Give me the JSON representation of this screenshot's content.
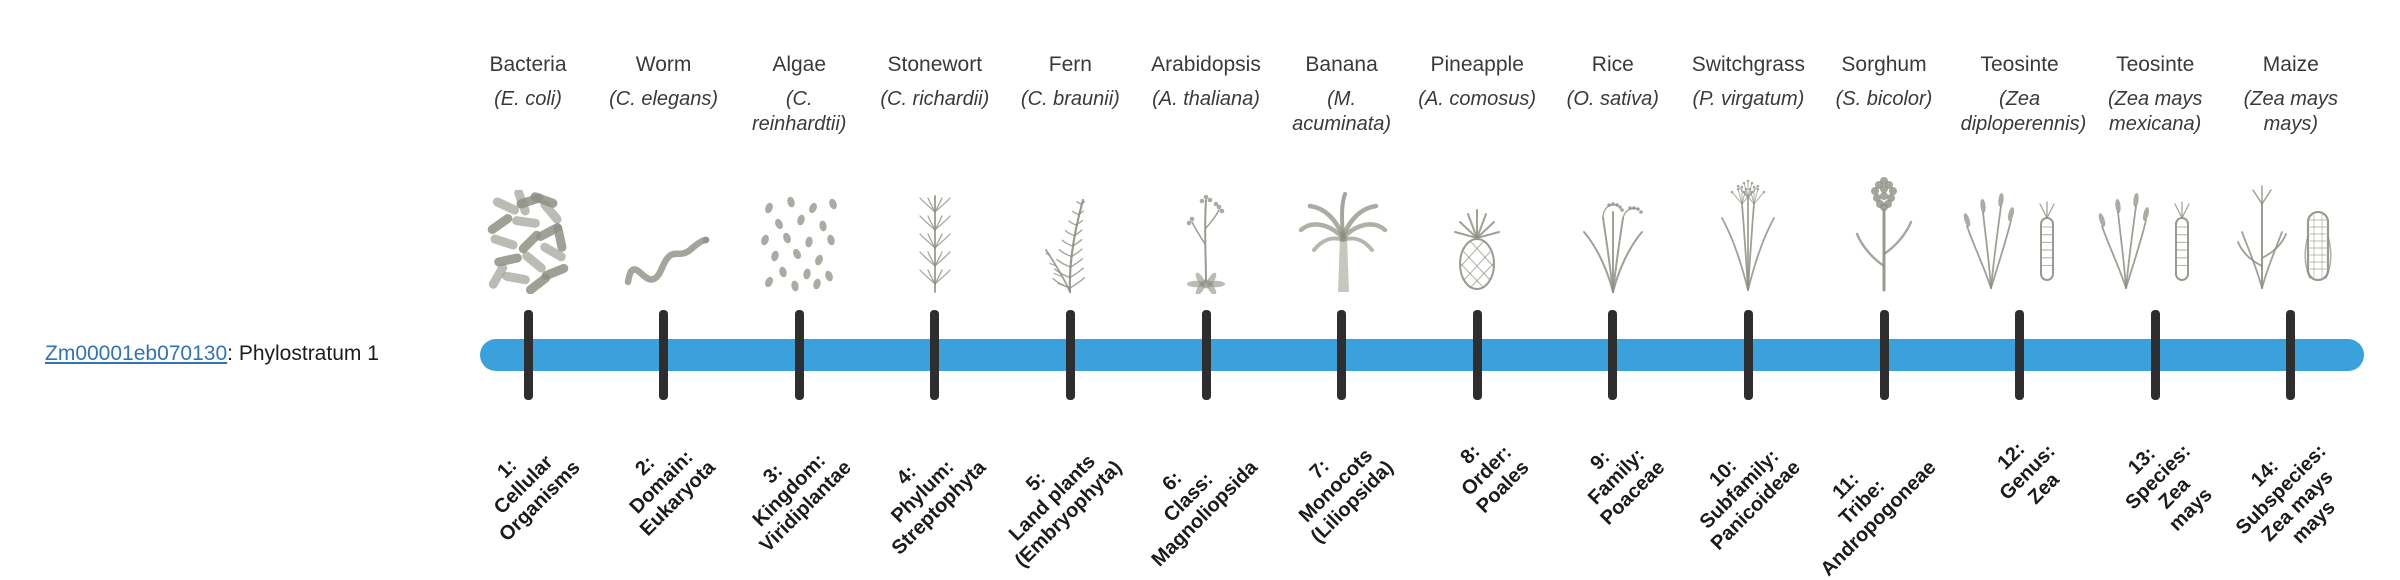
{
  "gene": {
    "id": "Zm00001eb070130",
    "stratum_text": ": Phylostratum 1"
  },
  "colors": {
    "bar": "#3BA1DC",
    "tick": "#2e2e2e",
    "link": "#3273B6",
    "heading": "#3a3a3a",
    "stratum": "#1b1b1b",
    "illustration": "#8f8f85"
  },
  "columns": [
    {
      "name": "Bacteria",
      "species": "(E. coli)",
      "icon": "bacteria",
      "stratum_lines": [
        "1:",
        "Cellular",
        "Organisms"
      ]
    },
    {
      "name": "Worm",
      "species": "(C. elegans)",
      "icon": "worm",
      "stratum_lines": [
        "2:",
        "Domain:",
        "Eukaryota"
      ]
    },
    {
      "name": "Algae",
      "species": "(C. reinhardtii)",
      "icon": "algae",
      "stratum_lines": [
        "3:",
        "Kingdom:",
        "Viridiplantae"
      ]
    },
    {
      "name": "Stonewort",
      "species": "(C. richardii)",
      "icon": "stonewort",
      "stratum_lines": [
        "4:",
        "Phylum:",
        "Streptophyta"
      ]
    },
    {
      "name": "Fern",
      "species": "(C. braunii)",
      "icon": "fern",
      "stratum_lines": [
        "5:",
        "Land plants",
        "(Embryophyta)"
      ]
    },
    {
      "name": "Arabidopsis",
      "species": "(A. thaliana)",
      "icon": "arabidopsis",
      "stratum_lines": [
        "6:",
        "Class:",
        "Magnoliopsida"
      ]
    },
    {
      "name": "Banana",
      "species": "(M. acuminata)",
      "icon": "banana",
      "stratum_lines": [
        "7:",
        "Monocots",
        "(Liliopsida)"
      ]
    },
    {
      "name": "Pineapple",
      "species": "(A. comosus)",
      "icon": "pineapple",
      "stratum_lines": [
        "8:",
        "Order:",
        "Poales"
      ]
    },
    {
      "name": "Rice",
      "species": "(O. sativa)",
      "icon": "rice",
      "stratum_lines": [
        "9:",
        "Family:",
        "Poaceae"
      ]
    },
    {
      "name": "Switchgrass",
      "species": "(P. virgatum)",
      "icon": "switchgrass",
      "stratum_lines": [
        "10:",
        "Subfamily:",
        "Panicoideae"
      ]
    },
    {
      "name": "Sorghum",
      "species": "(S. bicolor)",
      "icon": "sorghum",
      "stratum_lines": [
        "11:",
        "Tribe:",
        "Andropogoneae"
      ]
    },
    {
      "name": "Teosinte",
      "species": "(Zea diploperennis)",
      "icon": "teosinte",
      "stratum_lines": [
        "12:",
        "Genus:",
        "Zea"
      ]
    },
    {
      "name": "Teosinte",
      "species": "(Zea mays mexicana)",
      "icon": "teosinte",
      "stratum_lines": [
        "13:",
        "Species:",
        "Zea",
        "mays"
      ]
    },
    {
      "name": "Maize",
      "species": "(Zea mays mays)",
      "icon": "maize",
      "stratum_lines": [
        "14:",
        "Subspecies:",
        "Zea mays",
        "mays"
      ]
    }
  ]
}
